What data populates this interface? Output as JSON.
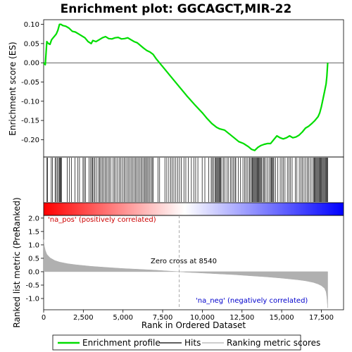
{
  "chart_data": {
    "type": "line",
    "title": "Enrichment plot: GGCAGCT,MIR-22",
    "es_panel": {
      "ylabel": "Enrichment score (ES)",
      "ylim": [
        -0.245,
        0.112
      ],
      "yticks": [
        0.1,
        0.05,
        0.0,
        -0.05,
        -0.1,
        -0.15,
        -0.2
      ],
      "ytick_labels": [
        "0.10",
        "0.05",
        "0.00",
        "-0.05",
        "-0.10",
        "-0.15",
        "-0.20"
      ],
      "series": [
        {
          "name": "Enrichment profile",
          "color": "#00dd00",
          "x": [
            0,
            100,
            200,
            300,
            400,
            500,
            600,
            700,
            800,
            900,
            1000,
            1100,
            1200,
            1400,
            1600,
            1800,
            2000,
            2200,
            2400,
            2600,
            2800,
            3000,
            3100,
            3300,
            3500,
            3700,
            3900,
            4100,
            4300,
            4500,
            4700,
            4900,
            5100,
            5300,
            5500,
            5700,
            5900,
            6100,
            6300,
            6500,
            6700,
            6900,
            7100,
            7300,
            7500,
            8000,
            8500,
            9000,
            9500,
            10000,
            10300,
            10600,
            10900,
            11100,
            11400,
            11700,
            12000,
            12300,
            12600,
            12900,
            13100,
            13300,
            13500,
            13700,
            13900,
            14100,
            14300,
            14500,
            14700,
            14900,
            15100,
            15300,
            15500,
            15700,
            15900,
            16100,
            16300,
            16500,
            16700,
            16900,
            17100,
            17300,
            17400,
            17500,
            17600,
            17700,
            17800,
            17850,
            17900
          ],
          "y": [
            0.0,
            -0.005,
            0.055,
            0.05,
            0.048,
            0.06,
            0.065,
            0.07,
            0.075,
            0.085,
            0.1,
            0.1,
            0.097,
            0.095,
            0.09,
            0.082,
            0.08,
            0.075,
            0.07,
            0.065,
            0.055,
            0.05,
            0.058,
            0.055,
            0.06,
            0.065,
            0.068,
            0.063,
            0.062,
            0.065,
            0.066,
            0.062,
            0.063,
            0.065,
            0.06,
            0.055,
            0.052,
            0.045,
            0.038,
            0.032,
            0.028,
            0.022,
            0.01,
            0.0,
            -0.01,
            -0.035,
            -0.06,
            -0.085,
            -0.108,
            -0.13,
            -0.145,
            -0.158,
            -0.168,
            -0.172,
            -0.175,
            -0.185,
            -0.195,
            -0.205,
            -0.21,
            -0.218,
            -0.225,
            -0.228,
            -0.22,
            -0.215,
            -0.212,
            -0.21,
            -0.21,
            -0.2,
            -0.19,
            -0.195,
            -0.198,
            -0.195,
            -0.19,
            -0.195,
            -0.193,
            -0.188,
            -0.18,
            -0.17,
            -0.165,
            -0.158,
            -0.15,
            -0.14,
            -0.13,
            -0.115,
            -0.095,
            -0.075,
            -0.055,
            -0.035,
            0.0
          ]
        }
      ]
    },
    "hits": {
      "name": "Hits",
      "positions": [
        210,
        250,
        480,
        560,
        720,
        790,
        860,
        940,
        990,
        1040,
        1080,
        1120,
        1490,
        1630,
        1760,
        1970,
        2160,
        2260,
        2480,
        2560,
        2640,
        2860,
        2960,
        3040,
        3080,
        3170,
        3240,
        3360,
        3470,
        3540,
        3620,
        3710,
        3790,
        3890,
        3960,
        4060,
        4140,
        4240,
        4380,
        4460,
        4560,
        4660,
        4760,
        4860,
        4960,
        5060,
        5140,
        5240,
        5330,
        5420,
        5510,
        5600,
        5690,
        5780,
        5860,
        5950,
        6040,
        6130,
        6210,
        6300,
        6380,
        6440,
        6520,
        6590,
        6680,
        6760,
        6840,
        6910,
        7200,
        7310,
        7640,
        7760,
        7890,
        8010,
        8110,
        8210,
        8330,
        8440,
        8560,
        8680,
        8840,
        8960,
        9110,
        9310,
        9460,
        9580,
        9720,
        9990,
        10160,
        10410,
        10560,
        10620,
        10710,
        10810,
        10860,
        10910,
        10960,
        11010,
        11060,
        11110,
        11160,
        11230,
        11330,
        11430,
        11560,
        11660,
        11780,
        11860,
        11960,
        12060,
        12110,
        12260,
        12410,
        12560,
        12660,
        12760,
        12860,
        12960,
        13010,
        13110,
        13160,
        13210,
        13260,
        13310,
        13360,
        13410,
        13460,
        13510,
        13560,
        13610,
        13660,
        13710,
        13760,
        13860,
        13910,
        14010,
        14110,
        14210,
        14310,
        14360,
        14410,
        14460,
        14510,
        14610,
        14760,
        14910,
        15010,
        15110,
        15210,
        15360,
        15460,
        15560,
        15660,
        15860,
        15960,
        16110,
        16210,
        16310,
        16410,
        16510,
        16610,
        16710,
        16810,
        16910,
        17010,
        17060,
        17110,
        17160,
        17210,
        17260,
        17310,
        17360,
        17410,
        17460,
        17510,
        17560,
        17610,
        17660,
        17710,
        17760,
        17810,
        17860,
        17900
      ]
    },
    "metric_panel": {
      "ylabel": "Ranked list metric (PreRanked)",
      "ylim": [
        -1.42,
        2.1
      ],
      "yticks": [
        2.0,
        1.5,
        1.0,
        0.5,
        0.0,
        -0.5,
        -1.0
      ],
      "ytick_labels": [
        "2.0",
        "1.5",
        "1.0",
        "0.5",
        "0.0",
        "-0.5",
        "-1.0"
      ],
      "series_name": "Ranking metric scores",
      "color": "#b0b0b0",
      "x": [
        0,
        50,
        100,
        200,
        400,
        700,
        1000,
        1500,
        2000,
        3000,
        4000,
        5000,
        6000,
        7000,
        8000,
        8540,
        9000,
        10000,
        11000,
        12000,
        13000,
        14000,
        15000,
        16000,
        16500,
        17000,
        17300,
        17500,
        17700,
        17800,
        17850,
        17900
      ],
      "y": [
        1.2,
        0.95,
        0.8,
        0.65,
        0.52,
        0.42,
        0.36,
        0.3,
        0.26,
        0.2,
        0.16,
        0.12,
        0.09,
        0.06,
        0.02,
        0.0,
        -0.02,
        -0.05,
        -0.08,
        -0.11,
        -0.15,
        -0.19,
        -0.24,
        -0.3,
        -0.34,
        -0.4,
        -0.46,
        -0.52,
        -0.62,
        -0.75,
        -0.95,
        -1.35
      ]
    },
    "xaxis": {
      "xlabel": "Rank in Ordered Dataset",
      "xlim": [
        0,
        18900
      ],
      "xticks": [
        0,
        2500,
        5000,
        7500,
        10000,
        12500,
        15000,
        17500
      ],
      "xtick_labels": [
        "0",
        "2,500",
        "5,000",
        "7,500",
        "10,000",
        "12,500",
        "15,000",
        "17,500"
      ]
    },
    "zero_cross": {
      "rank": 8540,
      "label": "Zero cross at 8540"
    },
    "annotations": {
      "pos_label": "'na_pos' (positively correlated)",
      "neg_label": "'na_neg' (negatively correlated)",
      "pos_color": "#cc0000",
      "neg_color": "#0000cc"
    },
    "legend": {
      "placement": "bottom",
      "entries": [
        "Enrichment profile",
        "Hits",
        "Ranking metric scores"
      ]
    },
    "colorbar": {
      "start_color": "#ff0000",
      "mid_color": "#ffffff",
      "end_color": "#0000ff"
    }
  }
}
